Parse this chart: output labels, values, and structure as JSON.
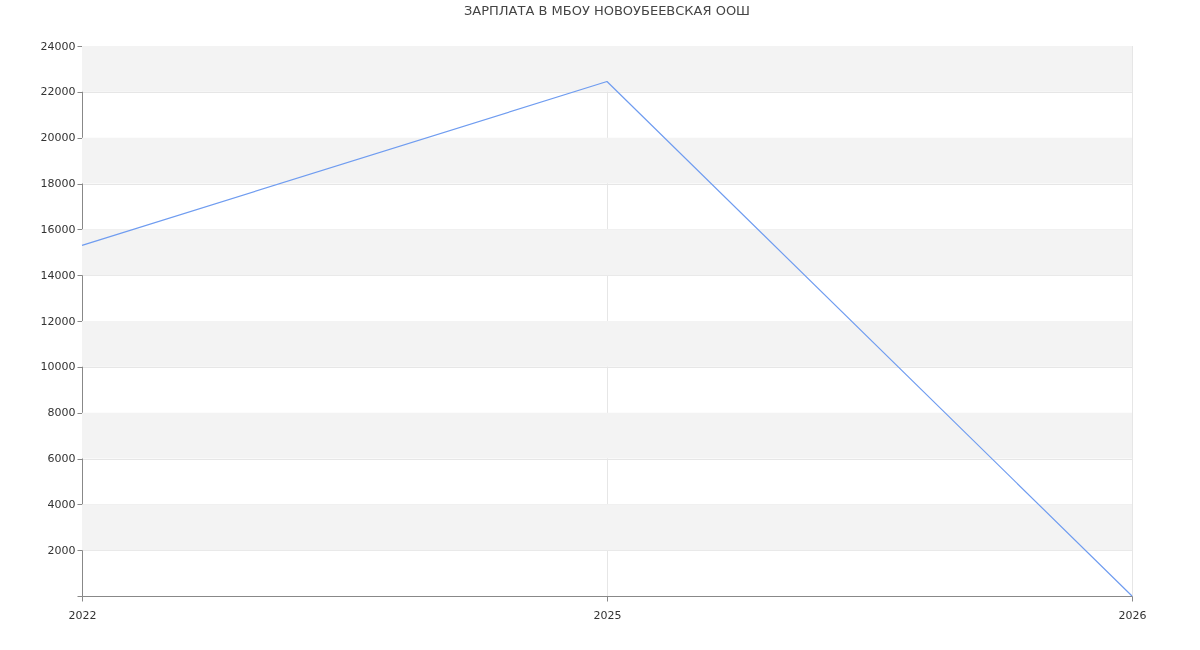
{
  "chart_data": {
    "type": "line",
    "title": "ЗАРПЛАТА В МБОУ НОВОУБЕЕВСКАЯ ООШ",
    "categories": [
      "2022",
      "2025",
      "2026"
    ],
    "series": [
      {
        "color": "#6f9cf0",
        "values": [
          15300,
          22450,
          0
        ]
      }
    ],
    "ylim": [
      0,
      24000
    ],
    "yticks": [
      {
        "value": 0,
        "label": null
      },
      2000,
      4000,
      6000,
      8000,
      10000,
      12000,
      14000,
      16000,
      18000,
      20000,
      22000,
      24000
    ],
    "grid": true,
    "marker": "none",
    "line_style": "solid"
  }
}
